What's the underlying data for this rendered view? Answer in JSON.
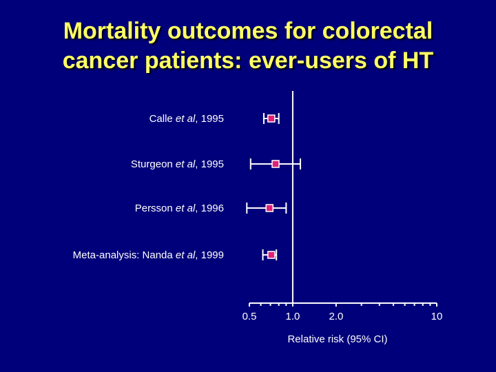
{
  "title": {
    "line1": "Mortality outcomes for colorectal",
    "line2": "cancer patients: ever-users of HT"
  },
  "colors": {
    "background": "#00007a",
    "title": "#ffff66",
    "marker_fill": "#e0207a",
    "axis": "#ffffff"
  },
  "chart_data": {
    "type": "forest",
    "title": "Mortality outcomes for colorectal cancer patients: ever-users of HT",
    "xlabel": "Relative risk (95% CI)",
    "x_scale": "log",
    "xlim": [
      0.5,
      10
    ],
    "reference_line": 1.0,
    "tick_labels": [
      {
        "value": 0.5,
        "label": "0.5"
      },
      {
        "value": 1.0,
        "label": "1.0"
      },
      {
        "value": 2.0,
        "label": "2.0"
      },
      {
        "value": 10,
        "label": "10"
      }
    ],
    "minor_ticks": [
      0.6,
      0.7,
      0.8,
      0.9,
      3,
      4,
      5,
      6,
      7,
      8,
      9
    ],
    "studies": [
      {
        "label": {
          "pre": "Calle ",
          "ital": "et al",
          "post": ", 1995"
        },
        "rr": 0.71,
        "ci": [
          0.63,
          0.8
        ]
      },
      {
        "label": {
          "pre": "Sturgeon ",
          "ital": "et al",
          "post": ", 1995"
        },
        "rr": 0.76,
        "ci": [
          0.51,
          1.13
        ]
      },
      {
        "label": {
          "pre": "Persson ",
          "ital": "et al",
          "post": ", 1996"
        },
        "rr": 0.69,
        "ci": [
          0.48,
          0.9
        ]
      },
      {
        "label": {
          "pre": "Meta-analysis: Nanda ",
          "ital": "et al",
          "post": ", 1999"
        },
        "rr": 0.71,
        "ci": [
          0.62,
          0.77
        ]
      }
    ]
  }
}
